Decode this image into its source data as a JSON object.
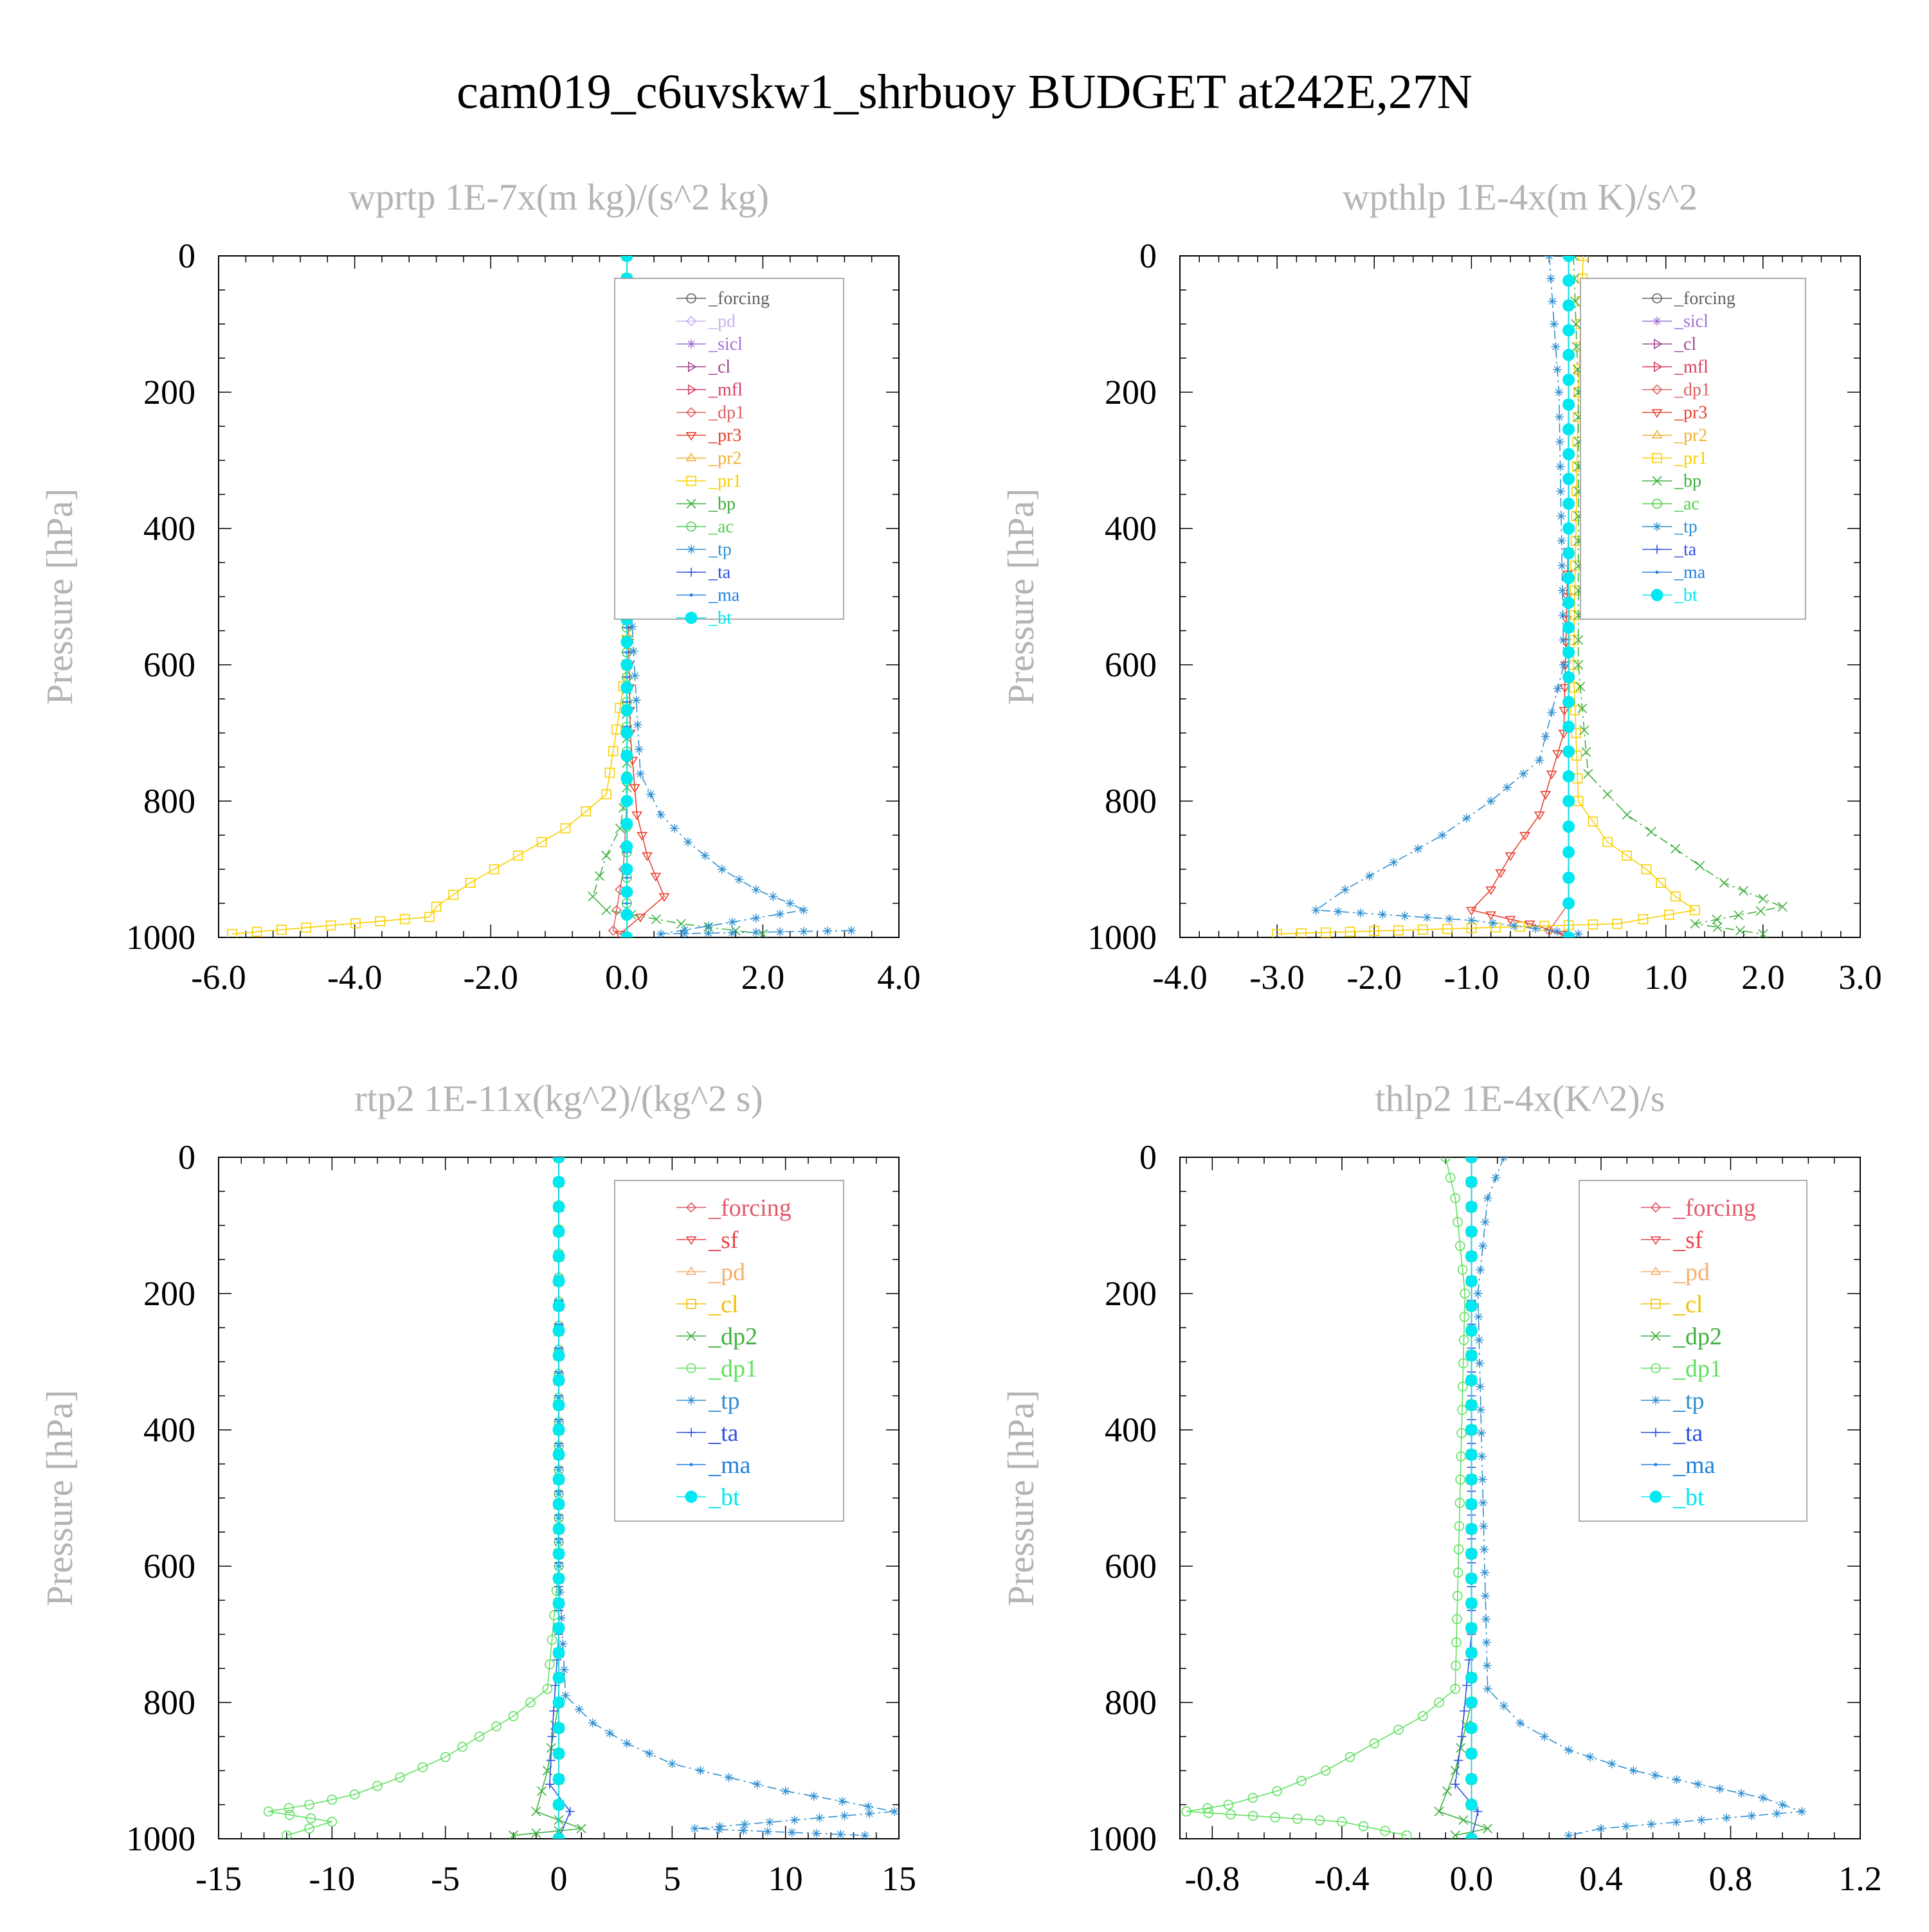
{
  "figure": {
    "title": "cam019_c6uvskw1_shrbuoy  BUDGET at242E,27N"
  },
  "colors": {
    "_forcing": "#606060",
    "_forcing_r": "#e05a6a",
    "_pd": "#c8b4f0",
    "_pd_r": "#f4b070",
    "_sf": "#e8484c",
    "_sicl": "#a070d8",
    "_cl": "#a04890",
    "_cl_r": "#f0c000",
    "_mfl": "#d84060",
    "_dp1": "#e06060",
    "_dp1_r": "#60e060",
    "_dp2": "#40b040",
    "_pr3": "#e84030",
    "_pr2": "#f0b030",
    "_pr1": "#f8d000",
    "_bp": "#40b040",
    "_ac": "#50d050",
    "_tp": "#3090d0",
    "_ta": "#3050e0",
    "_ma": "#2080e0",
    "_bt": "#00e8f0"
  },
  "chart_data": [
    {
      "type": "line",
      "title": "wprtp  1E-7x(m kg)/(s^2 kg)",
      "ylabel": "Pressure [hPa]",
      "xlabel": "",
      "xlim": [
        -6.0,
        4.0
      ],
      "ylim": [
        1000,
        0
      ],
      "xticks": [
        "-6.0",
        "-4.0",
        "-2.0",
        "0.0",
        "2.0",
        "4.0"
      ],
      "yticks": [
        "0",
        "200",
        "400",
        "600",
        "800",
        "1000"
      ],
      "legend_position": "upper-right",
      "series": [
        {
          "name": "_forcing",
          "x": [
            0,
            0,
            0,
            0,
            0,
            0,
            0
          ],
          "y": [
            0,
            200,
            400,
            600,
            800,
            900,
            1000
          ]
        },
        {
          "name": "_pd",
          "x": [
            0,
            0,
            0,
            0,
            0,
            0,
            0
          ],
          "y": [
            0,
            200,
            400,
            600,
            800,
            900,
            1000
          ]
        },
        {
          "name": "_sicl",
          "x": [
            0,
            0,
            0,
            0,
            0,
            0,
            0
          ],
          "y": [
            0,
            200,
            400,
            600,
            800,
            900,
            1000
          ]
        },
        {
          "name": "_cl",
          "x": [
            0,
            0,
            0,
            0,
            0,
            0,
            0
          ],
          "y": [
            0,
            200,
            400,
            600,
            800,
            900,
            1000
          ]
        },
        {
          "name": "_mfl",
          "x": [
            0,
            0,
            0,
            0,
            0,
            0,
            0
          ],
          "y": [
            0,
            200,
            400,
            600,
            800,
            900,
            1000
          ]
        },
        {
          "name": "_dp1",
          "x": [
            0,
            0,
            0,
            0,
            0,
            -0.05,
            -0.2,
            0
          ],
          "y": [
            0,
            200,
            400,
            600,
            800,
            900,
            990,
            1000
          ]
        },
        {
          "name": "_pr3",
          "x": [
            0,
            0,
            0,
            0.05,
            0.15,
            0.3,
            0.55,
            0.2,
            -0.1
          ],
          "y": [
            0,
            200,
            400,
            700,
            820,
            880,
            940,
            970,
            995
          ]
        },
        {
          "name": "_pr2",
          "x": [
            0,
            0,
            0,
            0,
            0,
            0
          ],
          "y": [
            0,
            200,
            400,
            600,
            800,
            1000
          ]
        },
        {
          "name": "_pr1",
          "x": [
            0,
            0,
            0,
            -0.3,
            -0.9,
            -1.6,
            -2.3,
            -2.8,
            -2.9,
            -5.8
          ],
          "y": [
            0,
            200,
            600,
            790,
            840,
            880,
            920,
            955,
            970,
            995
          ]
        },
        {
          "name": "_bp",
          "x": [
            0,
            0,
            0,
            0,
            -0.1,
            -0.3,
            -0.5,
            -0.3,
            0.8,
            2.0
          ],
          "y": [
            0,
            200,
            600,
            780,
            840,
            880,
            940,
            960,
            980,
            995
          ]
        },
        {
          "name": "_ac",
          "x": [
            0,
            0,
            0,
            0,
            0
          ],
          "y": [
            0,
            400,
            800,
            950,
            1000
          ]
        },
        {
          "name": "_tp",
          "x": [
            0,
            0,
            0,
            0.2,
            0.5,
            0.9,
            1.4,
            1.9,
            2.4,
            2.6,
            0.5,
            3.3
          ],
          "y": [
            0,
            200,
            400,
            760,
            820,
            860,
            900,
            930,
            950,
            960,
            995,
            990
          ]
        },
        {
          "name": "_ta",
          "x": [
            0,
            0,
            0,
            0,
            0
          ],
          "y": [
            0,
            400,
            800,
            950,
            1000
          ]
        },
        {
          "name": "_ma",
          "x": [
            0,
            0,
            0,
            0,
            0
          ],
          "y": [
            0,
            400,
            800,
            950,
            1000
          ]
        },
        {
          "name": "_bt",
          "x": [
            0,
            0,
            0,
            0,
            0,
            0,
            0
          ],
          "y": [
            0,
            200,
            400,
            600,
            800,
            900,
            1000
          ]
        }
      ]
    },
    {
      "type": "line",
      "title": "wpthlp  1E-4x(m K)/s^2",
      "ylabel": "Pressure [hPa]",
      "xlabel": "",
      "xlim": [
        -4.0,
        3.0
      ],
      "ylim": [
        1000,
        0
      ],
      "xticks": [
        "-4.0",
        "-3.0",
        "-2.0",
        "-1.0",
        "0.0",
        "1.0",
        "2.0",
        "3.0"
      ],
      "yticks": [
        "0",
        "200",
        "400",
        "600",
        "800",
        "1000"
      ],
      "legend_position": "upper-right",
      "series": [
        {
          "name": "_forcing",
          "x": [
            0,
            0,
            0,
            0,
            0
          ],
          "y": [
            0,
            400,
            800,
            950,
            1000
          ]
        },
        {
          "name": "_sicl",
          "x": [
            0,
            0,
            0,
            0,
            0
          ],
          "y": [
            0,
            400,
            800,
            950,
            1000
          ]
        },
        {
          "name": "_cl",
          "x": [
            0,
            0,
            0,
            0,
            0
          ],
          "y": [
            0,
            400,
            800,
            950,
            1000
          ]
        },
        {
          "name": "_mfl",
          "x": [
            0,
            0,
            0,
            0,
            0
          ],
          "y": [
            0,
            400,
            800,
            950,
            1000
          ]
        },
        {
          "name": "_dp1",
          "x": [
            0,
            0,
            0,
            0,
            -0.2,
            0
          ],
          "y": [
            0,
            400,
            800,
            950,
            990,
            1000
          ]
        },
        {
          "name": "_pr3",
          "x": [
            0,
            0,
            -0.05,
            -0.3,
            -0.6,
            -0.8,
            -1.0,
            -0.4,
            -0.05
          ],
          "y": [
            0,
            400,
            700,
            820,
            880,
            930,
            960,
            980,
            995
          ]
        },
        {
          "name": "_pr2",
          "x": [
            0,
            0,
            0,
            0,
            0
          ],
          "y": [
            0,
            400,
            800,
            950,
            1000
          ]
        },
        {
          "name": "_pr1",
          "x": [
            0.15,
            0.1,
            0.05,
            0.1,
            0.4,
            0.8,
            1.1,
            1.3,
            0.5,
            -3.0
          ],
          "y": [
            0,
            200,
            600,
            800,
            860,
            900,
            940,
            960,
            980,
            995
          ]
        },
        {
          "name": "_bp",
          "x": [
            0.05,
            0.1,
            0.1,
            0.2,
            0.6,
            1.1,
            1.6,
            2.2,
            1.3,
            2.0
          ],
          "y": [
            0,
            200,
            600,
            760,
            820,
            870,
            920,
            955,
            980,
            995
          ]
        },
        {
          "name": "_ac",
          "x": [
            0,
            0,
            0,
            0,
            0
          ],
          "y": [
            0,
            400,
            800,
            950,
            1000
          ]
        },
        {
          "name": "_tp",
          "x": [
            -0.2,
            -0.1,
            -0.05,
            -0.3,
            -0.8,
            -1.3,
            -1.8,
            -2.3,
            -2.6,
            -1.0,
            0.1
          ],
          "y": [
            0,
            200,
            600,
            740,
            800,
            850,
            890,
            930,
            960,
            975,
            995
          ]
        },
        {
          "name": "_ta",
          "x": [
            0,
            0,
            0,
            0,
            0
          ],
          "y": [
            0,
            400,
            800,
            950,
            1000
          ]
        },
        {
          "name": "_ma",
          "x": [
            0,
            0,
            0,
            0,
            0
          ],
          "y": [
            0,
            400,
            800,
            950,
            1000
          ]
        },
        {
          "name": "_bt",
          "x": [
            0,
            0,
            0,
            0,
            0
          ],
          "y": [
            0,
            400,
            800,
            950,
            1000
          ]
        }
      ]
    },
    {
      "type": "line",
      "title": "rtp2  1E-11x(kg^2)/(kg^2 s)",
      "ylabel": "Pressure [hPa]",
      "xlabel": "",
      "xlim": [
        -15,
        15
      ],
      "ylim": [
        1000,
        0
      ],
      "xticks": [
        "-15",
        "-10",
        "-5",
        "0",
        "5",
        "10",
        "15"
      ],
      "yticks": [
        "0",
        "200",
        "400",
        "600",
        "800",
        "1000"
      ],
      "legend_position": "upper-right",
      "series": [
        {
          "name": "_forcing",
          "x": [
            0,
            0,
            0,
            0,
            0
          ],
          "y": [
            0,
            400,
            800,
            950,
            1000
          ]
        },
        {
          "name": "_sf",
          "x": [
            0,
            0,
            0,
            0,
            0
          ],
          "y": [
            0,
            400,
            800,
            950,
            1000
          ]
        },
        {
          "name": "_pd",
          "x": [
            0,
            0,
            0,
            0,
            0
          ],
          "y": [
            0,
            400,
            800,
            950,
            1000
          ]
        },
        {
          "name": "_cl",
          "x": [
            0,
            0,
            0,
            0,
            0
          ],
          "y": [
            0,
            400,
            800,
            950,
            1000
          ]
        },
        {
          "name": "_dp2",
          "x": [
            0,
            0,
            0,
            -0.5,
            -1.0,
            1.0,
            -2.0
          ],
          "y": [
            0,
            400,
            800,
            900,
            960,
            985,
            995
          ]
        },
        {
          "name": "_dp1",
          "x": [
            0,
            0,
            -0.5,
            -2.0,
            -3.5,
            -5.0,
            -7.0,
            -9.0,
            -11.0,
            -12.8,
            -10.0,
            -12.0
          ],
          "y": [
            0,
            600,
            780,
            820,
            850,
            880,
            910,
            935,
            950,
            960,
            975,
            995
          ]
        },
        {
          "name": "_tp",
          "x": [
            0,
            0,
            0.3,
            1.5,
            3.0,
            5.0,
            7.5,
            10.0,
            12.5,
            14.8,
            6.0,
            13.5
          ],
          "y": [
            0,
            600,
            790,
            830,
            860,
            890,
            910,
            930,
            945,
            960,
            985,
            995
          ]
        },
        {
          "name": "_ta",
          "x": [
            0,
            0,
            -0.3,
            -0.4,
            0.5,
            0
          ],
          "y": [
            0,
            700,
            850,
            920,
            960,
            1000
          ]
        },
        {
          "name": "_ma",
          "x": [
            0,
            0,
            0,
            0,
            0
          ],
          "y": [
            0,
            400,
            800,
            950,
            1000
          ]
        },
        {
          "name": "_bt",
          "x": [
            0,
            0,
            0,
            0,
            0
          ],
          "y": [
            0,
            400,
            800,
            950,
            1000
          ]
        }
      ]
    },
    {
      "type": "line",
      "title": "thlp2  1E-4x(K^2)/s",
      "ylabel": "Pressure [hPa]",
      "xlabel": "",
      "xlim": [
        -0.9,
        1.2
      ],
      "ylim": [
        1000,
        0
      ],
      "xticks": [
        "-0.8",
        "-0.4",
        "0.0",
        "0.4",
        "0.8",
        "1.2"
      ],
      "yticks": [
        "0",
        "200",
        "400",
        "600",
        "800",
        "1000"
      ],
      "legend_position": "upper-right",
      "series": [
        {
          "name": "_forcing",
          "x": [
            0,
            0,
            0,
            0,
            0
          ],
          "y": [
            0,
            400,
            800,
            950,
            1000
          ]
        },
        {
          "name": "_sf",
          "x": [
            0,
            0,
            0,
            0,
            0
          ],
          "y": [
            0,
            400,
            800,
            950,
            1000
          ]
        },
        {
          "name": "_pd",
          "x": [
            0,
            0,
            0,
            0,
            0
          ],
          "y": [
            0,
            400,
            800,
            950,
            1000
          ]
        },
        {
          "name": "_cl",
          "x": [
            0,
            0,
            0,
            0,
            0
          ],
          "y": [
            0,
            400,
            800,
            950,
            1000
          ]
        },
        {
          "name": "_dp2",
          "x": [
            0,
            0,
            0,
            -0.05,
            -0.1,
            0.05,
            -0.05
          ],
          "y": [
            0,
            400,
            800,
            900,
            960,
            985,
            995
          ]
        },
        {
          "name": "_dp1",
          "x": [
            -0.08,
            -0.05,
            -0.02,
            -0.05,
            -0.15,
            -0.3,
            -0.45,
            -0.6,
            -0.75,
            -0.88,
            -0.4,
            -0.2
          ],
          "y": [
            0,
            60,
            200,
            780,
            820,
            860,
            900,
            930,
            950,
            960,
            975,
            995
          ]
        },
        {
          "name": "_tp",
          "x": [
            0.1,
            0.05,
            0.02,
            0.05,
            0.15,
            0.3,
            0.5,
            0.7,
            0.9,
            1.02,
            0.4,
            0.3
          ],
          "y": [
            0,
            60,
            200,
            780,
            830,
            870,
            900,
            920,
            940,
            960,
            985,
            995
          ]
        },
        {
          "name": "_ta",
          "x": [
            0,
            0,
            -0.03,
            -0.05,
            0.02,
            0
          ],
          "y": [
            0,
            700,
            850,
            920,
            960,
            1000
          ]
        },
        {
          "name": "_ma",
          "x": [
            0,
            0,
            0,
            0,
            0
          ],
          "y": [
            0,
            400,
            800,
            950,
            1000
          ]
        },
        {
          "name": "_bt",
          "x": [
            0,
            0,
            0,
            0,
            0
          ],
          "y": [
            0,
            400,
            800,
            950,
            1000
          ]
        }
      ]
    }
  ]
}
